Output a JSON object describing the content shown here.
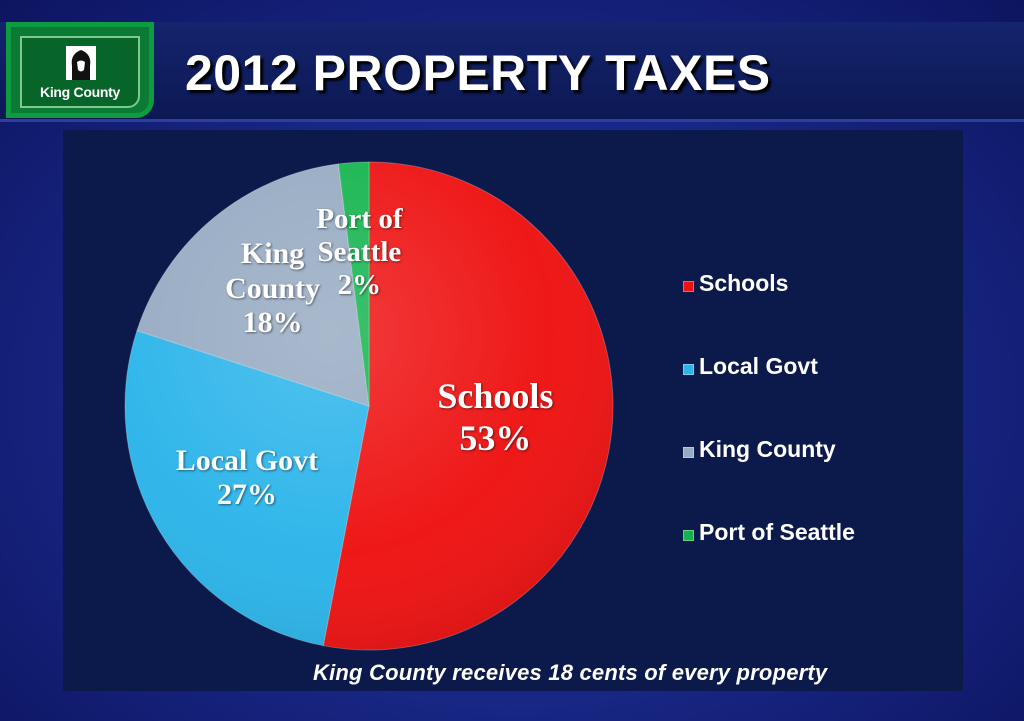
{
  "header": {
    "title": "2012 PROPERTY TAXES",
    "logo_text": "King County"
  },
  "footnote": "King County receives 18 cents of every property",
  "colors": {
    "Schools": "#ee1111",
    "Local Govt": "#2bb4ea",
    "King County": "#96aac2",
    "Port of Seattle": "#13b44d"
  },
  "chart_data": {
    "type": "pie",
    "title": "",
    "slices": [
      {
        "label": "Schools",
        "value": 53,
        "display": "53%",
        "label_lines": [
          "Schools",
          "53%"
        ]
      },
      {
        "label": "Local Govt",
        "value": 27,
        "display": "27%",
        "label_lines": [
          "Local Govt",
          "27%"
        ]
      },
      {
        "label": "King County",
        "value": 18,
        "display": "18%",
        "label_lines": [
          "King",
          "County",
          "18%"
        ]
      },
      {
        "label": "Port of Seattle",
        "value": 2,
        "display": "2%",
        "label_lines": [
          "Port of",
          "Seattle",
          "2%"
        ]
      }
    ],
    "legend": [
      "Schools",
      "Local Govt",
      "King County",
      "Port of Seattle"
    ],
    "legend_position": "right"
  }
}
